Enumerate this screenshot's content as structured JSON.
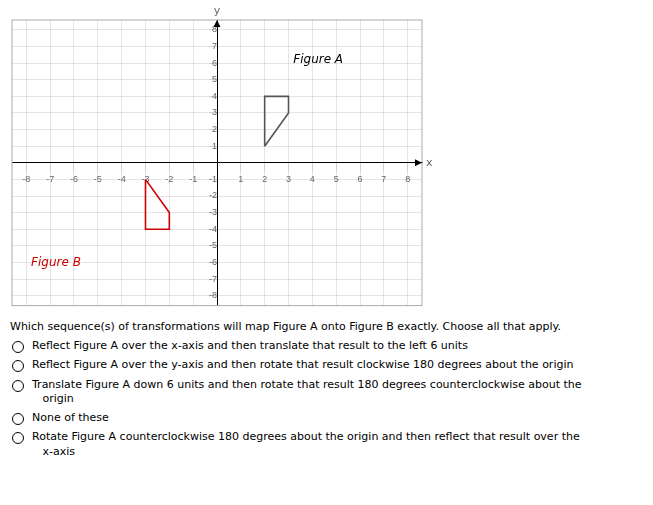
{
  "chart_data": {
    "type": "line",
    "xlabel": "x",
    "ylabel": "y",
    "series": [
      {
        "color": "#555555",
        "x": [
          2,
          2,
          3,
          3,
          2
        ],
        "values": [
          1,
          4,
          4,
          3,
          1
        ]
      },
      {
        "color": "#cc0000",
        "x": [
          -3,
          -3,
          -2,
          -2,
          -3
        ],
        "values": [
          -1,
          -4,
          -4,
          -3,
          -1
        ]
      }
    ],
    "annotations": [
      {
        "text": "Figure A",
        "x": 3.2,
        "y": 6.2,
        "color": "#000000"
      },
      {
        "text": "Figure B",
        "x": -7.8,
        "y": -6.0,
        "color": "#cc0000"
      }
    ],
    "xlim": [
      -8.6,
      8.6
    ],
    "ylim": [
      -8.6,
      8.6
    ],
    "xticks": [
      -8,
      -7,
      -6,
      -5,
      -4,
      -3,
      -2,
      -1,
      1,
      2,
      3,
      4,
      5,
      6,
      7,
      8
    ],
    "yticks": [
      -8,
      -7,
      -6,
      -5,
      -4,
      -3,
      -2,
      -1,
      1,
      2,
      3,
      4,
      5,
      6,
      7,
      8
    ],
    "grid": true,
    "question": "Which sequence(s) of transformations will map Figure A onto Figure B exactly.  Choose all that apply.",
    "options": [
      "Reflect Figure A over the x-axis and then translate that result to the left 6 units",
      "Reflect Figure A over the y-axis and then rotate that result clockwise 180 degrees about the origin",
      "Translate Figure A down 6 units and then rotate that result 180 degrees counterclockwise about the\n   origin",
      "None of these",
      "Rotate Figure A counterclockwise 180 degrees about the origin and then reflect that result over the\n   x-axis"
    ]
  }
}
